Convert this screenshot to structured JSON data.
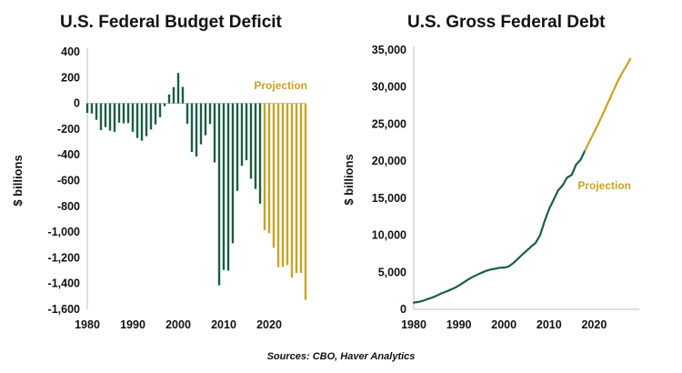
{
  "colors": {
    "historical": "#1b5e40",
    "projection": "#c9a227",
    "axis": "#bfbfbf",
    "text": "#111111"
  },
  "source": "Sources: CBO, Haver Analytics",
  "chart_data": [
    {
      "type": "bar",
      "title": "U.S. Federal Budget Deficit",
      "ylabel": "$ billions",
      "xlabel": "",
      "ylim": [
        -1600,
        400
      ],
      "yticks": [
        400,
        200,
        0,
        -200,
        -400,
        -600,
        -800,
        -1000,
        -1200,
        -1400,
        -1600
      ],
      "ytick_labels": [
        "400",
        "200",
        "0",
        "-200",
        "-400",
        "-600",
        "-800",
        "-1,000",
        "-1,200",
        "-1,400",
        "-1,600"
      ],
      "xticks": [
        1980,
        1990,
        2000,
        2010,
        2020
      ],
      "xlim": [
        1980,
        2028
      ],
      "annotation": "Projection",
      "grid": false,
      "x": [
        1980,
        1981,
        1982,
        1983,
        1984,
        1985,
        1986,
        1987,
        1988,
        1989,
        1990,
        1991,
        1992,
        1993,
        1994,
        1995,
        1996,
        1997,
        1998,
        1999,
        2000,
        2001,
        2002,
        2003,
        2004,
        2005,
        2006,
        2007,
        2008,
        2009,
        2010,
        2011,
        2012,
        2013,
        2014,
        2015,
        2016,
        2017,
        2018,
        2019,
        2020,
        2021,
        2022,
        2023,
        2024,
        2025,
        2026,
        2027,
        2028
      ],
      "values": [
        -74,
        -79,
        -128,
        -208,
        -185,
        -212,
        -221,
        -150,
        -155,
        -153,
        -221,
        -269,
        -290,
        -255,
        -203,
        -164,
        -107,
        -22,
        69,
        126,
        236,
        128,
        -158,
        -378,
        -413,
        -318,
        -248,
        -161,
        -459,
        -1413,
        -1294,
        -1300,
        -1087,
        -680,
        -485,
        -442,
        -585,
        -665,
        -779,
        -984,
        -1008,
        -1123,
        -1272,
        -1272,
        -1256,
        -1354,
        -1318,
        -1317,
        -1526
      ],
      "series_type": [
        "historical",
        "historical",
        "historical",
        "historical",
        "historical",
        "historical",
        "historical",
        "historical",
        "historical",
        "historical",
        "historical",
        "historical",
        "historical",
        "historical",
        "historical",
        "historical",
        "historical",
        "historical",
        "historical",
        "historical",
        "historical",
        "historical",
        "historical",
        "historical",
        "historical",
        "historical",
        "historical",
        "historical",
        "historical",
        "historical",
        "historical",
        "historical",
        "historical",
        "historical",
        "historical",
        "historical",
        "historical",
        "historical",
        "historical",
        "projection",
        "projection",
        "projection",
        "projection",
        "projection",
        "projection",
        "projection",
        "projection",
        "projection",
        "projection"
      ]
    },
    {
      "type": "line",
      "title": "U.S. Gross Federal Debt",
      "ylabel": "$ billions",
      "xlabel": "",
      "ylim": [
        0,
        35000
      ],
      "yticks": [
        35000,
        30000,
        25000,
        20000,
        15000,
        10000,
        5000,
        0
      ],
      "ytick_labels": [
        "35,000",
        "30,000",
        "25,000",
        "20,000",
        "15,000",
        "10,000",
        "5,000",
        "0"
      ],
      "xticks": [
        1980,
        1990,
        2000,
        2010,
        2020
      ],
      "xlim": [
        1980,
        2030
      ],
      "annotation": "Projection",
      "grid": false,
      "series": [
        {
          "type": "historical",
          "x": [
            1980,
            1981,
            1982,
            1983,
            1984,
            1985,
            1986,
            1987,
            1988,
            1989,
            1990,
            1991,
            1992,
            1993,
            1994,
            1995,
            1996,
            1997,
            1998,
            1999,
            2000,
            2001,
            2002,
            2003,
            2004,
            2005,
            2006,
            2007,
            2008,
            2009,
            2010,
            2011,
            2012,
            2013,
            2014,
            2015,
            2016,
            2017,
            2018
          ],
          "values": [
            909,
            995,
            1137,
            1371,
            1564,
            1817,
            2120,
            2346,
            2601,
            2868,
            3206,
            3598,
            4002,
            4351,
            4643,
            4921,
            5181,
            5369,
            5478,
            5606,
            5629,
            5770,
            6198,
            6760,
            7355,
            7905,
            8451,
            8951,
            9986,
            11876,
            13529,
            14764,
            16051,
            16719,
            17794,
            18120,
            19539,
            20206,
            21462
          ]
        },
        {
          "type": "projection",
          "x": [
            2018,
            2019,
            2020,
            2021,
            2022,
            2023,
            2024,
            2025,
            2026,
            2027,
            2028
          ],
          "values": [
            21462,
            22700,
            23900,
            25150,
            26450,
            27800,
            29150,
            30500,
            31700,
            32700,
            33800
          ]
        }
      ]
    }
  ]
}
